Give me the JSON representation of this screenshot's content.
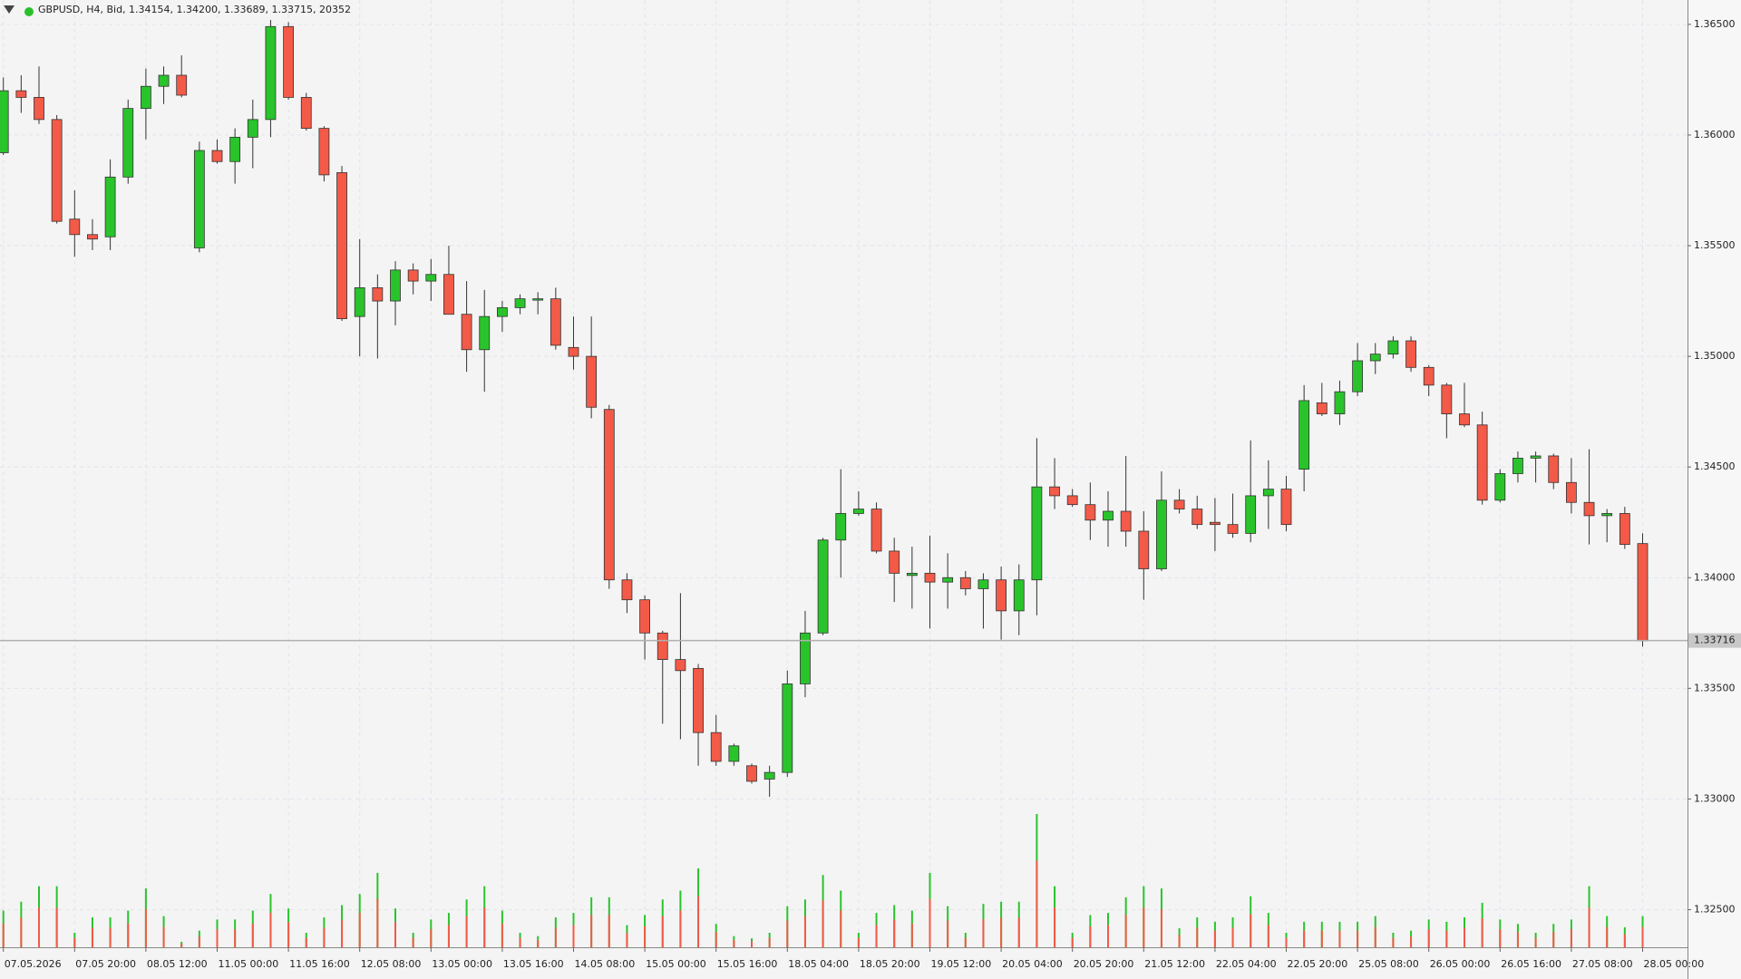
{
  "chart_data": {
    "type": "candlestick",
    "header": "GBPUSD, H4, Bid, 1.34154, 1.34200, 1.33689, 1.33715, 20352",
    "categories": [
      "07.05.2026",
      null,
      null,
      null,
      "07.05 20:00",
      null,
      null,
      null,
      "08.05 12:00",
      null,
      null,
      null,
      "11.05 00:00",
      null,
      null,
      null,
      "11.05 16:00",
      null,
      null,
      null,
      "12.05 08:00",
      null,
      null,
      null,
      "13.05 00:00",
      null,
      null,
      null,
      "13.05 16:00",
      null,
      null,
      null,
      "14.05 08:00",
      null,
      null,
      null,
      "15.05 00:00",
      null,
      null,
      null,
      "15.05 16:00",
      null,
      null,
      null,
      "18.05 04:00",
      null,
      null,
      null,
      "18.05 20:00",
      null,
      null,
      null,
      "19.05 12:00",
      null,
      null,
      null,
      "20.05 04:00",
      null,
      null,
      null,
      "20.05 20:00",
      null,
      null,
      null,
      "21.05 12:00",
      null,
      null,
      null,
      "22.05 04:00",
      null,
      null,
      null,
      "22.05 20:00",
      null,
      null,
      null,
      "25.05 08:00",
      null,
      null,
      null,
      "26.05 00:00",
      null,
      null,
      null,
      "26.05 16:00",
      null,
      null,
      null,
      "27.05 08:00",
      null,
      null,
      null,
      "28.05 00:00"
    ],
    "open": [
      1.3592,
      1.362,
      1.3617,
      1.3607,
      1.3562,
      1.3555,
      1.3554,
      1.3581,
      1.3612,
      1.3622,
      1.3627,
      1.3549,
      1.3593,
      1.3588,
      1.3599,
      1.3607,
      1.3649,
      1.3617,
      1.3603,
      1.3583,
      1.3518,
      1.3531,
      1.3525,
      1.3539,
      1.3534,
      1.3537,
      1.3519,
      1.3503,
      1.3518,
      1.3522,
      1.35255,
      1.3526,
      1.3504,
      1.35,
      1.3476,
      1.3399,
      1.339,
      1.3375,
      1.3363,
      1.3359,
      1.333,
      1.3317,
      1.3315,
      1.3309,
      1.3312,
      1.3352,
      1.3375,
      1.3417,
      1.3429,
      1.3431,
      1.3412,
      1.3401,
      1.3402,
      1.3398,
      1.34,
      1.3395,
      1.3399,
      1.3385,
      1.3399,
      1.3441,
      1.3437,
      1.3433,
      1.3426,
      1.343,
      1.3421,
      1.3404,
      1.3435,
      1.3431,
      1.3425,
      1.3424,
      1.342,
      1.3437,
      1.344,
      1.3449,
      1.3479,
      1.3474,
      1.3484,
      1.3498,
      1.3501,
      1.3507,
      1.3495,
      1.3487,
      1.3474,
      1.3469,
      1.3435,
      1.3447,
      1.3454,
      1.3455,
      1.3443,
      1.3434,
      1.3428,
      1.3429,
      1.34154
    ],
    "high": [
      1.3626,
      1.3627,
      1.3631,
      1.3609,
      1.3575,
      1.3562,
      1.3589,
      1.3616,
      1.363,
      1.3631,
      1.3636,
      1.3597,
      1.3598,
      1.3603,
      1.3616,
      1.3652,
      1.3651,
      1.3619,
      1.3604,
      1.3586,
      1.3553,
      1.3537,
      1.3543,
      1.3542,
      1.3544,
      1.355,
      1.3534,
      1.353,
      1.3525,
      1.3528,
      1.3529,
      1.3531,
      1.3518,
      1.3518,
      1.3478,
      1.3402,
      1.3392,
      1.3376,
      1.3393,
      1.3361,
      1.3338,
      1.3325,
      1.3316,
      1.3315,
      1.3358,
      1.3385,
      1.3418,
      1.3449,
      1.3439,
      1.3434,
      1.3418,
      1.3414,
      1.3419,
      1.3411,
      1.3403,
      1.3402,
      1.3405,
      1.3406,
      1.3463,
      1.3454,
      1.344,
      1.3443,
      1.3439,
      1.3455,
      1.343,
      1.3448,
      1.344,
      1.3437,
      1.3436,
      1.3438,
      1.3462,
      1.3453,
      1.3446,
      1.3487,
      1.3488,
      1.3489,
      1.3506,
      1.3506,
      1.3509,
      1.3509,
      1.3496,
      1.3488,
      1.3488,
      1.3475,
      1.3449,
      1.3457,
      1.3457,
      1.3456,
      1.3454,
      1.3458,
      1.3431,
      1.3432,
      1.342
    ],
    "low": [
      1.3591,
      1.361,
      1.3605,
      1.356,
      1.3545,
      1.3548,
      1.3548,
      1.3578,
      1.3598,
      1.3614,
      1.3617,
      1.3547,
      1.3587,
      1.3578,
      1.3585,
      1.3599,
      1.3616,
      1.3602,
      1.3579,
      1.3516,
      1.35,
      1.3499,
      1.3514,
      1.3528,
      1.3525,
      1.3519,
      1.3493,
      1.3484,
      1.3511,
      1.3519,
      1.3519,
      1.3503,
      1.3494,
      1.3472,
      1.3395,
      1.3384,
      1.3363,
      1.3334,
      1.3327,
      1.3315,
      1.3315,
      1.3315,
      1.3307,
      1.3301,
      1.331,
      1.3346,
      1.3374,
      1.34,
      1.3428,
      1.3411,
      1.3389,
      1.3386,
      1.3377,
      1.3386,
      1.3392,
      1.3377,
      1.3372,
      1.3374,
      1.3383,
      1.3431,
      1.3432,
      1.3417,
      1.3414,
      1.3414,
      1.339,
      1.3403,
      1.3429,
      1.3422,
      1.3412,
      1.3418,
      1.3416,
      1.3422,
      1.3421,
      1.3439,
      1.3473,
      1.3469,
      1.3482,
      1.3492,
      1.3499,
      1.3493,
      1.3482,
      1.3463,
      1.3468,
      1.3433,
      1.3434,
      1.3443,
      1.3443,
      1.344,
      1.3429,
      1.3415,
      1.3416,
      1.3413,
      1.33689
    ],
    "close": [
      1.362,
      1.3617,
      1.3607,
      1.3561,
      1.3555,
      1.3553,
      1.3581,
      1.3612,
      1.3622,
      1.3627,
      1.3618,
      1.3593,
      1.3588,
      1.3599,
      1.3607,
      1.3649,
      1.3617,
      1.3603,
      1.3582,
      1.3517,
      1.3531,
      1.3525,
      1.3539,
      1.3534,
      1.3537,
      1.3519,
      1.3503,
      1.3518,
      1.3522,
      1.3526,
      1.3526,
      1.3505,
      1.35,
      1.3477,
      1.3399,
      1.339,
      1.3375,
      1.3363,
      1.3358,
      1.333,
      1.3317,
      1.3324,
      1.3308,
      1.3312,
      1.3352,
      1.3375,
      1.3417,
      1.3429,
      1.3431,
      1.3412,
      1.3402,
      1.3402,
      1.3398,
      1.34,
      1.3395,
      1.3399,
      1.3385,
      1.3399,
      1.3441,
      1.3437,
      1.3433,
      1.3426,
      1.343,
      1.3421,
      1.3404,
      1.3435,
      1.3431,
      1.3424,
      1.3424,
      1.342,
      1.3437,
      1.344,
      1.3424,
      1.348,
      1.3474,
      1.3484,
      1.3498,
      1.3501,
      1.3507,
      1.3495,
      1.3487,
      1.3474,
      1.3469,
      1.3435,
      1.3447,
      1.3454,
      1.3455,
      1.3443,
      1.3434,
      1.3428,
      1.3429,
      1.3415,
      1.33715
    ],
    "volume": [
      24000,
      29800,
      40000,
      40000,
      9500,
      19600,
      19600,
      24000,
      38500,
      20400,
      3600,
      10900,
      18200,
      18200,
      24000,
      34900,
      25400,
      9500,
      19600,
      27600,
      34900,
      48700,
      25400,
      9500,
      18200,
      22500,
      31300,
      40000,
      24000,
      9500,
      7300,
      19600,
      22500,
      32700,
      32700,
      14500,
      21100,
      31300,
      37100,
      51600,
      15300,
      7300,
      5800,
      9500,
      26900,
      31300,
      47300,
      37100,
      9500,
      22500,
      27600,
      24000,
      48700,
      26900,
      9500,
      28400,
      29800,
      29800,
      87200,
      40000,
      9500,
      21100,
      22500,
      32700,
      40000,
      38500,
      12400,
      19600,
      16700,
      19600,
      33400,
      22500,
      9500,
      16700,
      16700,
      16700,
      16700,
      20400,
      9500,
      10900,
      18200,
      16700,
      19600,
      29100,
      18200,
      15300,
      9500,
      15300,
      18200,
      40000,
      20400,
      13100,
      20352
    ],
    "ylim": [
      1.3233,
      1.3661
    ],
    "yticks": [
      {
        "value": 1.325,
        "label": "1.32500"
      },
      {
        "value": 1.33,
        "label": "1.33000"
      },
      {
        "value": 1.335,
        "label": "1.33500"
      },
      {
        "value": 1.34,
        "label": "1.34000"
      },
      {
        "value": 1.345,
        "label": "1.34500"
      },
      {
        "value": 1.35,
        "label": "1.35000"
      },
      {
        "value": 1.355,
        "label": "1.35500"
      },
      {
        "value": 1.36,
        "label": "1.36000"
      },
      {
        "value": 1.365,
        "label": "1.36500"
      }
    ],
    "current_price": 1.33716,
    "up_color": "#29c42b",
    "down_color": "#f35a48",
    "grid": true
  }
}
